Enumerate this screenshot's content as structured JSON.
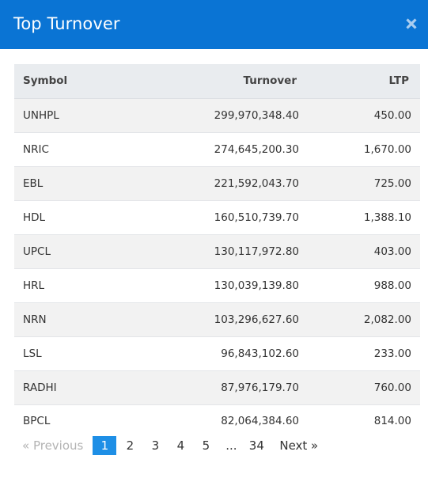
{
  "modal": {
    "title": "Top Turnover",
    "close_icon": "close-icon",
    "header_color": "#0a74d4"
  },
  "table": {
    "columns": [
      "Symbol",
      "Turnover",
      "LTP"
    ],
    "rows": [
      {
        "symbol": "UNHPL",
        "turnover": "299,970,348.40",
        "ltp": "450.00"
      },
      {
        "symbol": "NRIC",
        "turnover": "274,645,200.30",
        "ltp": "1,670.00"
      },
      {
        "symbol": "EBL",
        "turnover": "221,592,043.70",
        "ltp": "725.00"
      },
      {
        "symbol": "HDL",
        "turnover": "160,510,739.70",
        "ltp": "1,388.10"
      },
      {
        "symbol": "UPCL",
        "turnover": "130,117,972.80",
        "ltp": "403.00"
      },
      {
        "symbol": "HRL",
        "turnover": "130,039,139.80",
        "ltp": "988.00"
      },
      {
        "symbol": "NRN",
        "turnover": "103,296,627.60",
        "ltp": "2,082.00"
      },
      {
        "symbol": "LSL",
        "turnover": "96,843,102.60",
        "ltp": "233.00"
      },
      {
        "symbol": "RADHI",
        "turnover": "87,976,179.70",
        "ltp": "760.00"
      },
      {
        "symbol": "BPCL",
        "turnover": "82,064,384.60",
        "ltp": "814.00"
      }
    ]
  },
  "pagination": {
    "previous_label": "« Previous",
    "next_label": "Next »",
    "pages": [
      "1",
      "2",
      "3",
      "4",
      "5",
      "...",
      "34"
    ],
    "active_page": "1",
    "active_color": "#1e8fe6"
  }
}
